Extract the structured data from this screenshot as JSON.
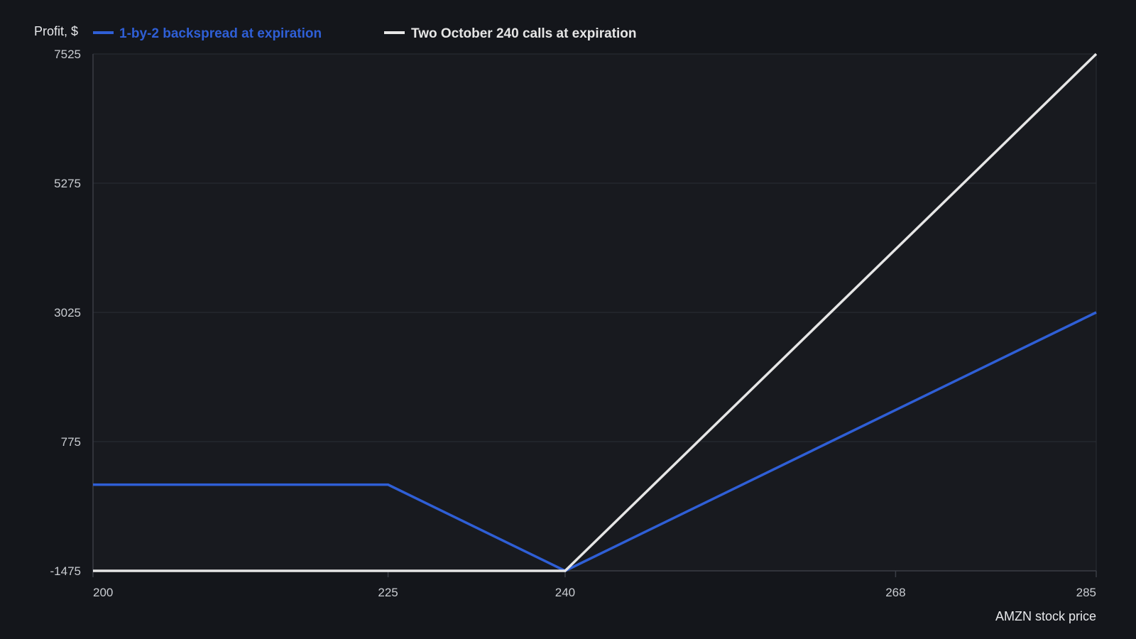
{
  "colors": {
    "background": "#14161b",
    "plot_background": "#181a1f",
    "grid": "#2a2d34",
    "axis": "#3a3d45",
    "series_backspread": "#2f5fd6",
    "series_calls": "#e6e6e6"
  },
  "chart_data": {
    "type": "line",
    "ylabel": "Profit, $",
    "xlabel": "AMZN stock price",
    "xlim": [
      200,
      285
    ],
    "ylim": [
      -1475,
      7525
    ],
    "x_ticks": [
      200,
      225,
      240,
      268,
      285
    ],
    "y_ticks": [
      -1475,
      775,
      3025,
      5275,
      7525
    ],
    "grid": true,
    "legend_position": "top-left",
    "series": [
      {
        "name": "1-by-2 backspread at expiration",
        "color": "#2f5fd6",
        "points": [
          [
            200,
            25
          ],
          [
            225,
            25
          ],
          [
            240,
            -1475
          ],
          [
            285,
            3025
          ]
        ]
      },
      {
        "name": "Two October 240 calls at expiration",
        "color": "#e6e6e6",
        "points": [
          [
            200,
            -1475
          ],
          [
            240,
            -1475
          ],
          [
            285,
            7525
          ]
        ]
      }
    ]
  }
}
